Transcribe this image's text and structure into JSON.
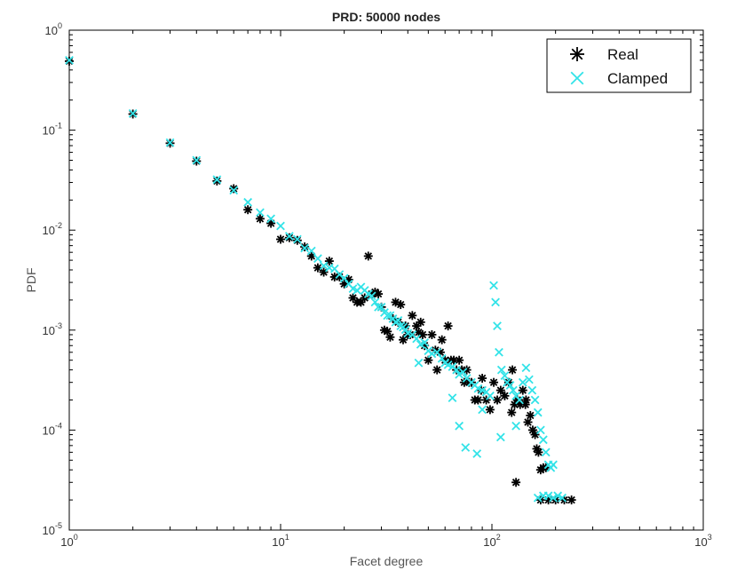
{
  "chart_data": {
    "type": "scatter",
    "title": "PRD: 50000 nodes",
    "xlabel": "Facet degree",
    "ylabel": "PDF",
    "xscale": "log",
    "yscale": "log",
    "xlim": [
      1,
      1000
    ],
    "ylim": [
      1e-05,
      1
    ],
    "x_ticks": [
      {
        "base": "10",
        "exp": "0",
        "value": 1
      },
      {
        "base": "10",
        "exp": "1",
        "value": 10
      },
      {
        "base": "10",
        "exp": "2",
        "value": 100
      },
      {
        "base": "10",
        "exp": "3",
        "value": 1000
      }
    ],
    "y_ticks": [
      {
        "base": "10",
        "exp": "0",
        "value": 1
      },
      {
        "base": "10",
        "exp": "-1",
        "value": 0.1
      },
      {
        "base": "10",
        "exp": "-2",
        "value": 0.01
      },
      {
        "base": "10",
        "exp": "-3",
        "value": 0.001
      },
      {
        "base": "10",
        "exp": "-4",
        "value": 0.0001
      },
      {
        "base": "10",
        "exp": "-5",
        "value": 1e-05
      }
    ],
    "legend_position": "top-right",
    "grid": false,
    "series": [
      {
        "name": "Real",
        "marker": "asterisk",
        "color": "#000000",
        "points": [
          [
            1,
            0.49
          ],
          [
            2,
            0.145
          ],
          [
            3,
            0.074
          ],
          [
            4,
            0.049
          ],
          [
            5,
            0.031
          ],
          [
            6,
            0.026
          ],
          [
            7,
            0.016
          ],
          [
            8,
            0.013
          ],
          [
            9,
            0.0117
          ],
          [
            10,
            0.0081
          ],
          [
            11,
            0.0084
          ],
          [
            12,
            0.0079
          ],
          [
            13,
            0.0068
          ],
          [
            14,
            0.0055
          ],
          [
            15,
            0.0042
          ],
          [
            16,
            0.0038
          ],
          [
            17,
            0.0049
          ],
          [
            18,
            0.0034
          ],
          [
            19,
            0.0034
          ],
          [
            20,
            0.0029
          ],
          [
            21,
            0.0032
          ],
          [
            22,
            0.0021
          ],
          [
            23,
            0.0019
          ],
          [
            24,
            0.0019
          ],
          [
            25,
            0.0021
          ],
          [
            26,
            0.0055
          ],
          [
            27,
            0.0023
          ],
          [
            28,
            0.0024
          ],
          [
            29,
            0.0023
          ],
          [
            30,
            0.0017
          ],
          [
            31,
            0.001
          ],
          [
            32,
            0.00097
          ],
          [
            33,
            0.00085
          ],
          [
            34,
            0.0013
          ],
          [
            35,
            0.0019
          ],
          [
            36,
            0.0012
          ],
          [
            37,
            0.0018
          ],
          [
            38,
            0.0008
          ],
          [
            39,
            0.0011
          ],
          [
            40,
            0.0009
          ],
          [
            41,
            0.0009
          ],
          [
            42,
            0.0014
          ],
          [
            44,
            0.0011
          ],
          [
            45,
            0.00095
          ],
          [
            46,
            0.0012
          ],
          [
            47,
            0.0009
          ],
          [
            48,
            0.0007
          ],
          [
            50,
            0.0005
          ],
          [
            52,
            0.0009
          ],
          [
            54,
            0.00063
          ],
          [
            55,
            0.0004
          ],
          [
            57,
            0.0006
          ],
          [
            58,
            0.0008
          ],
          [
            60,
            0.0005
          ],
          [
            62,
            0.0011
          ],
          [
            64,
            0.0005
          ],
          [
            66,
            0.0005
          ],
          [
            68,
            0.0004
          ],
          [
            70,
            0.0005
          ],
          [
            72,
            0.0004
          ],
          [
            74,
            0.0003
          ],
          [
            76,
            0.0004
          ],
          [
            78,
            0.0003
          ],
          [
            80,
            0.0003
          ],
          [
            83,
            0.0002
          ],
          [
            86,
            0.0002
          ],
          [
            90,
            0.00033
          ],
          [
            94,
            0.0002
          ],
          [
            98,
            0.00016
          ],
          [
            102,
            0.0003
          ],
          [
            106,
            0.0002
          ],
          [
            110,
            0.00025
          ],
          [
            115,
            0.00022
          ],
          [
            120,
            0.0003
          ],
          [
            124,
            0.00015
          ],
          [
            128,
            0.00018
          ],
          [
            132,
            0.0002
          ],
          [
            136,
            0.00018
          ],
          [
            140,
            0.00025
          ],
          [
            144,
            0.00018
          ],
          [
            148,
            0.00012
          ],
          [
            152,
            0.00014
          ],
          [
            156,
            0.0001
          ],
          [
            160,
            9e-05
          ],
          [
            163,
            6.5e-05
          ],
          [
            166,
            6e-05
          ],
          [
            170,
            4e-05
          ],
          [
            175,
            4.2e-05
          ],
          [
            180,
            4.2e-05
          ],
          [
            170,
            2e-05
          ],
          [
            185,
            2e-05
          ],
          [
            200,
            2e-05
          ],
          [
            220,
            2e-05
          ],
          [
            238,
            2e-05
          ],
          [
            89,
            0.00025
          ],
          [
            145,
            0.0002
          ],
          [
            130,
            3e-05
          ],
          [
            125,
            0.0004
          ]
        ]
      },
      {
        "name": "Clamped",
        "marker": "x",
        "color": "#33e3e8",
        "points": [
          [
            1,
            0.5
          ],
          [
            2,
            0.147
          ],
          [
            3,
            0.075
          ],
          [
            4,
            0.05
          ],
          [
            5,
            0.032
          ],
          [
            6,
            0.025
          ],
          [
            7,
            0.019
          ],
          [
            8,
            0.015
          ],
          [
            9,
            0.013
          ],
          [
            10,
            0.011
          ],
          [
            11,
            0.0087
          ],
          [
            12,
            0.0081
          ],
          [
            13,
            0.0066
          ],
          [
            14,
            0.0062
          ],
          [
            15,
            0.0052
          ],
          [
            16,
            0.0044
          ],
          [
            17,
            0.0042
          ],
          [
            18,
            0.0041
          ],
          [
            19,
            0.0036
          ],
          [
            20,
            0.0033
          ],
          [
            21,
            0.0029
          ],
          [
            22,
            0.0026
          ],
          [
            23,
            0.0025
          ],
          [
            24,
            0.0027
          ],
          [
            25,
            0.0025
          ],
          [
            26,
            0.0023
          ],
          [
            27,
            0.0022
          ],
          [
            28,
            0.0019
          ],
          [
            29,
            0.0017
          ],
          [
            30,
            0.0017
          ],
          [
            31,
            0.0015
          ],
          [
            32,
            0.0014
          ],
          [
            33,
            0.0014
          ],
          [
            34,
            0.0013
          ],
          [
            35,
            0.0012
          ],
          [
            36,
            0.00125
          ],
          [
            37,
            0.0011
          ],
          [
            38,
            0.00107
          ],
          [
            39,
            0.00101
          ],
          [
            40,
            0.00093
          ],
          [
            42,
            0.0009
          ],
          [
            44,
            0.00082
          ],
          [
            46,
            0.00072
          ],
          [
            48,
            0.00075
          ],
          [
            50,
            0.00062
          ],
          [
            52,
            0.00058
          ],
          [
            55,
            0.0006
          ],
          [
            58,
            0.00052
          ],
          [
            60,
            0.00047
          ],
          [
            62,
            0.00045
          ],
          [
            65,
            0.00043
          ],
          [
            68,
            0.0004
          ],
          [
            70,
            0.00036
          ],
          [
            73,
            0.00038
          ],
          [
            76,
            0.00033
          ],
          [
            80,
            0.0003
          ],
          [
            83,
            0.00028
          ],
          [
            86,
            0.00026
          ],
          [
            90,
            0.00025
          ],
          [
            94,
            0.00024
          ],
          [
            98,
            0.00022
          ],
          [
            102,
            0.0028
          ],
          [
            104,
            0.0019
          ],
          [
            106,
            0.0011
          ],
          [
            108,
            0.0006
          ],
          [
            111,
            0.0004
          ],
          [
            115,
            0.00035
          ],
          [
            118,
            0.0003
          ],
          [
            122,
            0.00028
          ],
          [
            126,
            0.00025
          ],
          [
            130,
            0.00022
          ],
          [
            135,
            0.0002
          ],
          [
            140,
            0.0003
          ],
          [
            145,
            0.00042
          ],
          [
            150,
            0.00032
          ],
          [
            155,
            0.00025
          ],
          [
            160,
            0.0002
          ],
          [
            165,
            0.00015
          ],
          [
            170,
            0.0001
          ],
          [
            175,
            8e-05
          ],
          [
            180,
            6e-05
          ],
          [
            185,
            4.5e-05
          ],
          [
            190,
            4.2e-05
          ],
          [
            195,
            4.5e-05
          ],
          [
            165,
            2.1e-05
          ],
          [
            175,
            2.2e-05
          ],
          [
            185,
            2.2e-05
          ],
          [
            195,
            2.1e-05
          ],
          [
            205,
            2.2e-05
          ],
          [
            215,
            2.1e-05
          ],
          [
            45,
            0.00047
          ],
          [
            65,
            0.00021
          ],
          [
            90,
            0.00016
          ],
          [
            85,
            5.8e-05
          ],
          [
            75,
            6.7e-05
          ],
          [
            70,
            0.00011
          ],
          [
            110,
            8.5e-05
          ],
          [
            130,
            0.00011
          ]
        ]
      }
    ]
  }
}
